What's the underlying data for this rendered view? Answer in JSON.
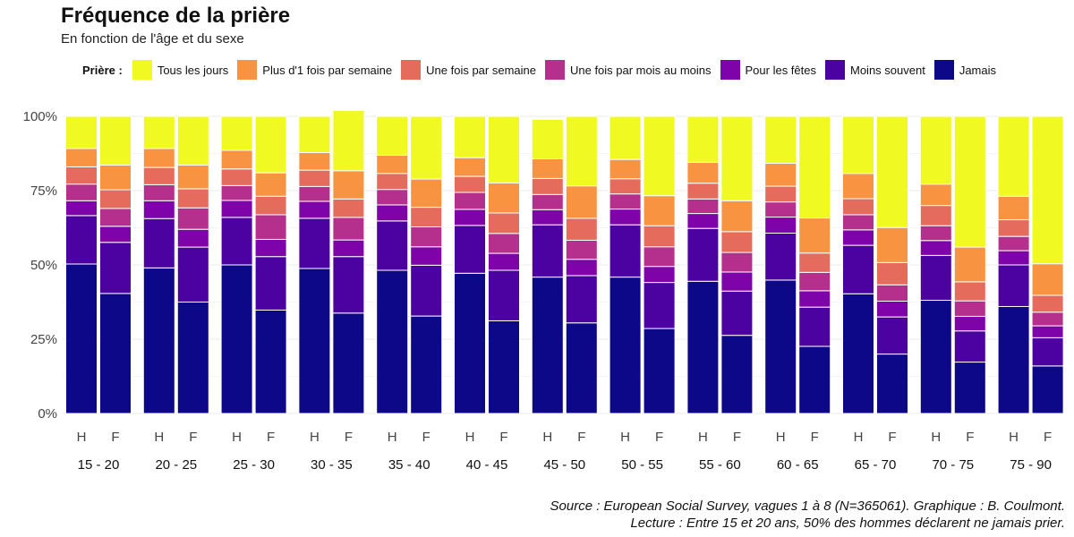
{
  "title": "Fréquence de la prière",
  "subtitle": "En fonction de l'âge et du sexe",
  "legend_title": "Prière :",
  "caption_line1": "Source : European Social Survey, vagues 1 à 8 (N=365061). Graphique : B. Coulmont.",
  "caption_line2": "Lecture : Entre 15 et 20 ans, 50% des hommes déclarent ne jamais prier.",
  "chart_data": {
    "type": "bar",
    "stacked": true,
    "normalized": true,
    "grid": true,
    "legend_position": "top",
    "ylim": [
      0,
      100
    ],
    "y_ticks": [
      "0%",
      "25%",
      "50%",
      "75%",
      "100%"
    ],
    "groups": [
      "15 - 20",
      "20 - 25",
      "25 - 30",
      "30 - 35",
      "35 - 40",
      "40 - 45",
      "45 - 50",
      "50 - 55",
      "55 - 60",
      "60 - 65",
      "65 - 70",
      "70 - 75",
      "75 - 90"
    ],
    "subcategories": [
      "H",
      "F"
    ],
    "series": [
      {
        "name": "Jamais",
        "color": "#0d0887",
        "values": [
          [
            50.3,
            40.4
          ],
          [
            49.0,
            37.5
          ],
          [
            50.0,
            34.8
          ],
          [
            48.8,
            33.8
          ],
          [
            48.2,
            32.8
          ],
          [
            47.2,
            31.2
          ],
          [
            45.9,
            30.5
          ],
          [
            45.9,
            28.6
          ],
          [
            44.5,
            26.3
          ],
          [
            44.9,
            22.6
          ],
          [
            40.3,
            20.0
          ],
          [
            38.1,
            17.3
          ],
          [
            36.0,
            16.0
          ]
        ]
      },
      {
        "name": "Moins souvent",
        "color": "#4c02a1",
        "values": [
          [
            16.3,
            17.2
          ],
          [
            16.6,
            18.5
          ],
          [
            16.0,
            18.0
          ],
          [
            16.9,
            19.0
          ],
          [
            16.6,
            17.1
          ],
          [
            16.1,
            17.0
          ],
          [
            17.6,
            15.9
          ],
          [
            17.6,
            15.5
          ],
          [
            17.8,
            14.9
          ],
          [
            15.8,
            13.2
          ],
          [
            16.3,
            12.5
          ],
          [
            15.1,
            10.5
          ],
          [
            14.0,
            9.5
          ]
        ]
      },
      {
        "name": "Pour les fêtes",
        "color": "#7e03a8",
        "values": [
          [
            5.0,
            5.4
          ],
          [
            6.0,
            6.0
          ],
          [
            5.7,
            5.8
          ],
          [
            5.7,
            5.6
          ],
          [
            5.4,
            6.2
          ],
          [
            5.4,
            5.7
          ],
          [
            5.1,
            5.5
          ],
          [
            5.3,
            5.4
          ],
          [
            5.0,
            6.4
          ],
          [
            5.4,
            5.5
          ],
          [
            5.2,
            5.3
          ],
          [
            5.0,
            4.9
          ],
          [
            4.8,
            4.0
          ]
        ]
      },
      {
        "name": "Une fois par mois au moins",
        "color": "#b52f8c",
        "values": [
          [
            5.6,
            6.0
          ],
          [
            5.4,
            7.2
          ],
          [
            5.0,
            8.3
          ],
          [
            5.0,
            7.6
          ],
          [
            5.2,
            6.7
          ],
          [
            5.7,
            6.7
          ],
          [
            5.1,
            6.4
          ],
          [
            5.1,
            6.6
          ],
          [
            4.9,
            6.6
          ],
          [
            5.1,
            6.2
          ],
          [
            5.1,
            5.5
          ],
          [
            5.0,
            5.2
          ],
          [
            4.8,
            4.6
          ]
        ]
      },
      {
        "name": "Une fois par semaine",
        "color": "#e56b5d",
        "values": [
          [
            5.8,
            6.3
          ],
          [
            5.8,
            6.4
          ],
          [
            5.6,
            6.2
          ],
          [
            5.5,
            6.2
          ],
          [
            5.4,
            6.6
          ],
          [
            5.4,
            6.9
          ],
          [
            5.4,
            7.4
          ],
          [
            5.1,
            7.1
          ],
          [
            5.3,
            7.0
          ],
          [
            5.3,
            6.5
          ],
          [
            5.4,
            7.5
          ],
          [
            6.8,
            6.4
          ],
          [
            5.6,
            5.7
          ]
        ]
      },
      {
        "name": "Plus d'1 fois par semaine",
        "color": "#f89441",
        "values": [
          [
            6.2,
            8.3
          ],
          [
            6.4,
            8.0
          ],
          [
            6.3,
            7.9
          ],
          [
            5.9,
            9.5
          ],
          [
            6.1,
            9.5
          ],
          [
            6.3,
            10.1
          ],
          [
            6.6,
            10.9
          ],
          [
            6.5,
            10.1
          ],
          [
            7.0,
            10.4
          ],
          [
            7.7,
            11.8
          ],
          [
            8.5,
            11.8
          ],
          [
            7.2,
            11.7
          ],
          [
            7.9,
            10.6
          ]
        ]
      },
      {
        "name": "Tous les jours",
        "color": "#f0f921",
        "values": [
          [
            10.8,
            16.4
          ],
          [
            10.8,
            16.4
          ],
          [
            11.4,
            19.0
          ],
          [
            12.2,
            20.3
          ],
          [
            13.1,
            21.1
          ],
          [
            13.9,
            22.4
          ],
          [
            13.3,
            23.4
          ],
          [
            14.5,
            26.7
          ],
          [
            15.5,
            28.4
          ],
          [
            15.8,
            34.2
          ],
          [
            19.2,
            37.4
          ],
          [
            22.8,
            44.0
          ],
          [
            26.9,
            49.6
          ]
        ]
      }
    ]
  }
}
